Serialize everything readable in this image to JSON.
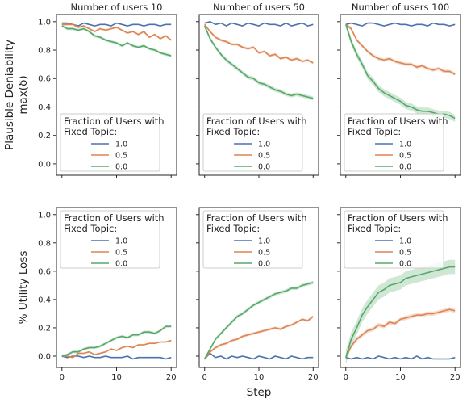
{
  "chart_data": {
    "type": "line",
    "grid": false,
    "legend_placement": "lower-left (top row), upper-left (bottom row)",
    "xlabel": "Step",
    "xlim": [
      -1,
      21
    ],
    "xticks": [
      0,
      10,
      20
    ],
    "rows": [
      {
        "ylabel_lines": [
          "Plausible Deniability",
          "max(δ)"
        ],
        "ylim": [
          -0.08,
          1.05
        ],
        "yticks": [
          0.0,
          0.2,
          0.4,
          0.6,
          0.8,
          1.0
        ]
      },
      {
        "ylabel_lines": [
          "% Utility Loss"
        ],
        "ylim": [
          -0.08,
          1.05
        ],
        "yticks": [
          0.0,
          0.2,
          0.4,
          0.6,
          0.8,
          1.0
        ]
      }
    ],
    "columns": [
      "Number of users 10",
      "Number of users 50",
      "Number of users 100"
    ],
    "legend": {
      "title_lines": [
        "Fraction of Users with",
        "Fixed Topic:"
      ],
      "entries": [
        "1.0",
        "0.5",
        "0.0"
      ]
    },
    "series_colors": {
      "1.0": "#4c72b0",
      "0.5": "#dd8452",
      "0.0": "#55a868"
    },
    "x": [
      0,
      1,
      2,
      3,
      4,
      5,
      6,
      7,
      8,
      9,
      10,
      11,
      12,
      13,
      14,
      15,
      16,
      17,
      18,
      19,
      20
    ],
    "panels": [
      {
        "row": 0,
        "col": 0,
        "series": [
          {
            "label": "1.0",
            "values": [
              0.99,
              0.99,
              0.98,
              0.97,
              0.99,
              0.98,
              0.97,
              0.98,
              0.98,
              0.97,
              0.99,
              0.98,
              0.97,
              0.98,
              0.98,
              0.97,
              0.98,
              0.98,
              0.97,
              0.98,
              0.98
            ],
            "band": 0.004
          },
          {
            "label": "0.5",
            "values": [
              0.98,
              0.98,
              0.98,
              0.96,
              0.97,
              0.95,
              0.93,
              0.95,
              0.94,
              0.95,
              0.96,
              0.94,
              0.92,
              0.93,
              0.91,
              0.93,
              0.89,
              0.91,
              0.88,
              0.9,
              0.87
            ],
            "band": 0.008
          },
          {
            "label": "0.0",
            "values": [
              0.97,
              0.95,
              0.95,
              0.94,
              0.95,
              0.93,
              0.9,
              0.89,
              0.87,
              0.86,
              0.85,
              0.83,
              0.85,
              0.83,
              0.82,
              0.83,
              0.81,
              0.8,
              0.78,
              0.77,
              0.76
            ],
            "band": 0.01
          }
        ]
      },
      {
        "row": 0,
        "col": 1,
        "series": [
          {
            "label": "1.0",
            "values": [
              0.99,
              1.0,
              0.98,
              0.99,
              0.97,
              0.99,
              0.98,
              0.97,
              0.99,
              0.98,
              0.97,
              0.99,
              0.98,
              0.98,
              0.97,
              0.99,
              0.97,
              0.98,
              0.99,
              0.97,
              0.98
            ],
            "band": 0.004
          },
          {
            "label": "0.5",
            "values": [
              0.98,
              0.93,
              0.89,
              0.87,
              0.86,
              0.84,
              0.84,
              0.82,
              0.81,
              0.82,
              0.78,
              0.79,
              0.76,
              0.77,
              0.74,
              0.75,
              0.73,
              0.74,
              0.72,
              0.73,
              0.71
            ],
            "band": 0.01
          },
          {
            "label": "0.0",
            "values": [
              0.97,
              0.88,
              0.82,
              0.77,
              0.73,
              0.7,
              0.67,
              0.64,
              0.61,
              0.6,
              0.57,
              0.56,
              0.54,
              0.52,
              0.51,
              0.49,
              0.48,
              0.49,
              0.48,
              0.47,
              0.46
            ],
            "band": 0.014
          }
        ]
      },
      {
        "row": 0,
        "col": 2,
        "series": [
          {
            "label": "1.0",
            "values": [
              0.98,
              0.99,
              0.98,
              0.97,
              0.99,
              0.99,
              0.98,
              0.97,
              0.98,
              0.99,
              0.98,
              0.98,
              0.97,
              0.98,
              0.98,
              0.97,
              0.99,
              0.98,
              0.98,
              0.97,
              0.98
            ],
            "band": 0.004
          },
          {
            "label": "0.5",
            "values": [
              0.98,
              0.95,
              0.87,
              0.83,
              0.79,
              0.76,
              0.74,
              0.73,
              0.74,
              0.72,
              0.71,
              0.7,
              0.7,
              0.68,
              0.69,
              0.67,
              0.66,
              0.67,
              0.65,
              0.65,
              0.63
            ],
            "band": 0.012
          },
          {
            "label": "0.0",
            "values": [
              0.98,
              0.86,
              0.77,
              0.7,
              0.62,
              0.58,
              0.53,
              0.5,
              0.48,
              0.46,
              0.44,
              0.41,
              0.4,
              0.38,
              0.37,
              0.37,
              0.36,
              0.35,
              0.35,
              0.34,
              0.32
            ],
            "band": 0.025
          }
        ]
      },
      {
        "row": 1,
        "col": 0,
        "series": [
          {
            "label": "1.0",
            "values": [
              0.0,
              -0.01,
              0.0,
              0.0,
              -0.01,
              0.0,
              -0.01,
              -0.01,
              0.0,
              -0.01,
              -0.01,
              -0.01,
              0.0,
              -0.02,
              -0.01,
              -0.01,
              -0.01,
              -0.01,
              -0.01,
              -0.02,
              -0.01
            ],
            "band": 0.004
          },
          {
            "label": "0.5",
            "values": [
              0.0,
              0.0,
              -0.01,
              0.02,
              0.02,
              0.03,
              0.01,
              0.02,
              0.03,
              0.05,
              0.04,
              0.06,
              0.07,
              0.06,
              0.08,
              0.08,
              0.09,
              0.09,
              0.1,
              0.1,
              0.11
            ],
            "band": 0.006
          },
          {
            "label": "0.0",
            "values": [
              0.0,
              0.01,
              0.03,
              0.03,
              0.05,
              0.06,
              0.06,
              0.07,
              0.09,
              0.11,
              0.13,
              0.14,
              0.13,
              0.15,
              0.15,
              0.17,
              0.17,
              0.16,
              0.18,
              0.21,
              0.21
            ],
            "band": 0.01
          }
        ]
      },
      {
        "row": 1,
        "col": 1,
        "series": [
          {
            "label": "1.0",
            "values": [
              -0.02,
              0.02,
              -0.01,
              0.0,
              -0.02,
              0.0,
              -0.01,
              0.0,
              -0.01,
              -0.02,
              0.0,
              -0.01,
              -0.02,
              0.0,
              -0.01,
              -0.02,
              0.0,
              -0.01,
              -0.02,
              -0.01,
              -0.01
            ],
            "band": 0.004
          },
          {
            "label": "0.5",
            "values": [
              -0.02,
              0.03,
              0.06,
              0.08,
              0.09,
              0.11,
              0.12,
              0.14,
              0.15,
              0.16,
              0.17,
              0.18,
              0.19,
              0.2,
              0.19,
              0.21,
              0.22,
              0.24,
              0.26,
              0.25,
              0.28
            ],
            "band": 0.01
          },
          {
            "label": "0.0",
            "values": [
              -0.02,
              0.05,
              0.12,
              0.16,
              0.2,
              0.24,
              0.28,
              0.3,
              0.33,
              0.36,
              0.38,
              0.4,
              0.42,
              0.44,
              0.45,
              0.46,
              0.48,
              0.48,
              0.5,
              0.51,
              0.52
            ],
            "band": 0.012
          }
        ]
      },
      {
        "row": 1,
        "col": 2,
        "series": [
          {
            "label": "1.0",
            "values": [
              -0.01,
              -0.02,
              -0.01,
              -0.02,
              -0.01,
              -0.02,
              0.0,
              -0.01,
              -0.02,
              -0.01,
              -0.02,
              -0.01,
              -0.02,
              0.0,
              -0.02,
              -0.01,
              -0.02,
              -0.02,
              -0.02,
              -0.02,
              -0.01
            ],
            "band": 0.004
          },
          {
            "label": "0.5",
            "values": [
              -0.01,
              0.07,
              0.12,
              0.15,
              0.18,
              0.19,
              0.22,
              0.21,
              0.24,
              0.23,
              0.26,
              0.27,
              0.28,
              0.29,
              0.29,
              0.3,
              0.3,
              0.31,
              0.32,
              0.33,
              0.32
            ],
            "band": 0.015
          },
          {
            "label": "0.0",
            "values": [
              -0.01,
              0.12,
              0.2,
              0.29,
              0.35,
              0.4,
              0.45,
              0.47,
              0.5,
              0.51,
              0.52,
              0.55,
              0.56,
              0.57,
              0.58,
              0.59,
              0.6,
              0.61,
              0.62,
              0.63,
              0.63
            ],
            "band": 0.05
          }
        ]
      }
    ]
  }
}
